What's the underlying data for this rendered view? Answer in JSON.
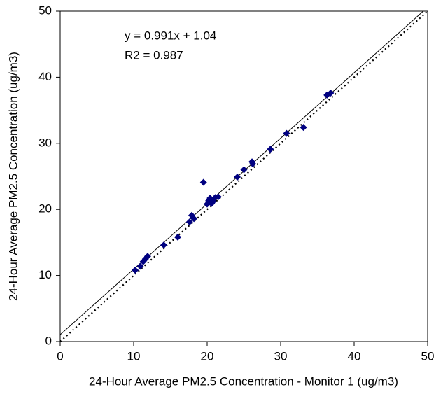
{
  "chart_data": {
    "type": "scatter",
    "x_label": "24-Hour Average PM2.5 Concentration - Monitor 1 (ug/m3)",
    "y_label": "24-Hour Average PM2.5 Concentration (ug/m3)",
    "annotations": [
      "y = 0.991x + 1.04",
      "R2 = 0.987"
    ],
    "xlim": [
      0,
      50
    ],
    "ylim": [
      0,
      50
    ],
    "xticks": [
      0,
      10,
      20,
      30,
      40,
      50
    ],
    "yticks": [
      0,
      10,
      20,
      30,
      40,
      50
    ],
    "grid": false,
    "series": [
      {
        "color": "#000080",
        "x": [
          10.2,
          10.9,
          11.3,
          11.6,
          11.9,
          14.1,
          16.0,
          17.6,
          17.9,
          18.2,
          19.5,
          20.0,
          20.2,
          20.4,
          20.6,
          20.8,
          21.1,
          21.5,
          24.1,
          25.0,
          26.1,
          26.2,
          28.6,
          30.8,
          33.1,
          36.3,
          36.8
        ],
        "values": [
          10.8,
          11.4,
          12.1,
          12.5,
          12.9,
          14.6,
          15.8,
          18.1,
          19.1,
          18.6,
          24.1,
          20.8,
          21.3,
          21.7,
          20.9,
          21.2,
          21.8,
          21.9,
          24.9,
          26.0,
          27.2,
          26.9,
          29.1,
          31.5,
          32.4,
          37.3,
          37.6
        ]
      }
    ],
    "lines": [
      {
        "style": "solid",
        "color": "#000000",
        "x": [
          0,
          50
        ],
        "values": [
          1.04,
          50.59
        ]
      },
      {
        "style": "dotted",
        "color": "#000000",
        "x": [
          0,
          50
        ],
        "values": [
          0,
          50
        ]
      }
    ]
  }
}
